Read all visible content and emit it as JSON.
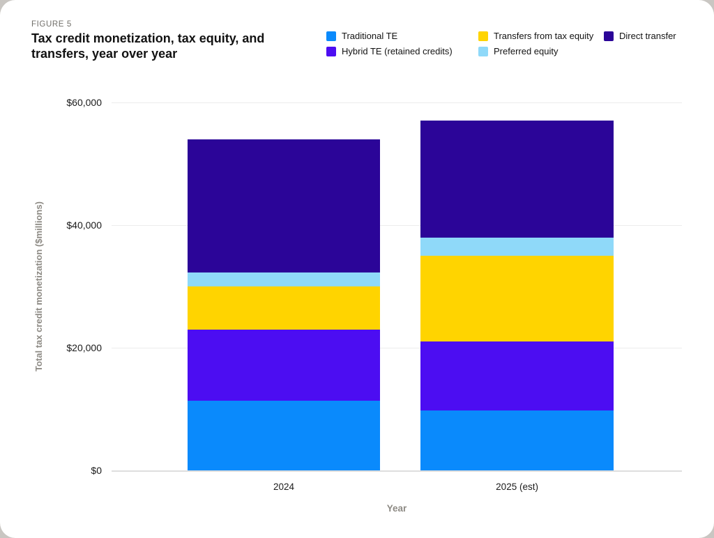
{
  "figure_label": "FIGURE 5",
  "title": "Tax credit monetization, tax equity, and transfers, year over year",
  "legend": {
    "items": [
      {
        "label": "Traditional TE",
        "color": "#0a8afc"
      },
      {
        "label": "Transfers from tax equity",
        "color": "#ffd400"
      },
      {
        "label": "Direct transfer",
        "color": "#2b0598"
      },
      {
        "label": "Hybrid TE (retained credits)",
        "color": "#4c0df2"
      },
      {
        "label": "Preferred equity",
        "color": "#8fd9f9"
      }
    ]
  },
  "chart_data": {
    "type": "bar",
    "stacked": true,
    "categories": [
      "2024",
      "2025 (est)"
    ],
    "series": [
      {
        "name": "Traditional TE",
        "color": "#0a8afc",
        "values": [
          11400,
          9800
        ]
      },
      {
        "name": "Hybrid TE (retained credits)",
        "color": "#4c0df2",
        "values": [
          11600,
          11200
        ]
      },
      {
        "name": "Transfers from tax equity",
        "color": "#ffd400",
        "values": [
          7000,
          14000
        ]
      },
      {
        "name": "Preferred equity",
        "color": "#8fd9f9",
        "values": [
          2300,
          3000
        ]
      },
      {
        "name": "Direct transfer",
        "color": "#2b0598",
        "values": [
          21700,
          19000
        ]
      }
    ],
    "totals": [
      54000,
      57000
    ],
    "title": "Tax credit monetization, tax equity, and transfers, year over year",
    "xlabel": "Year",
    "ylabel": "Total tax credit monetization ($millions)",
    "ylim": [
      0,
      60000
    ],
    "yticks": [
      0,
      20000,
      40000,
      60000
    ],
    "ytick_labels": [
      "$0",
      "$20,000",
      "$40,000",
      "$60,000"
    ],
    "grid": true,
    "legend_position": "top-right"
  }
}
